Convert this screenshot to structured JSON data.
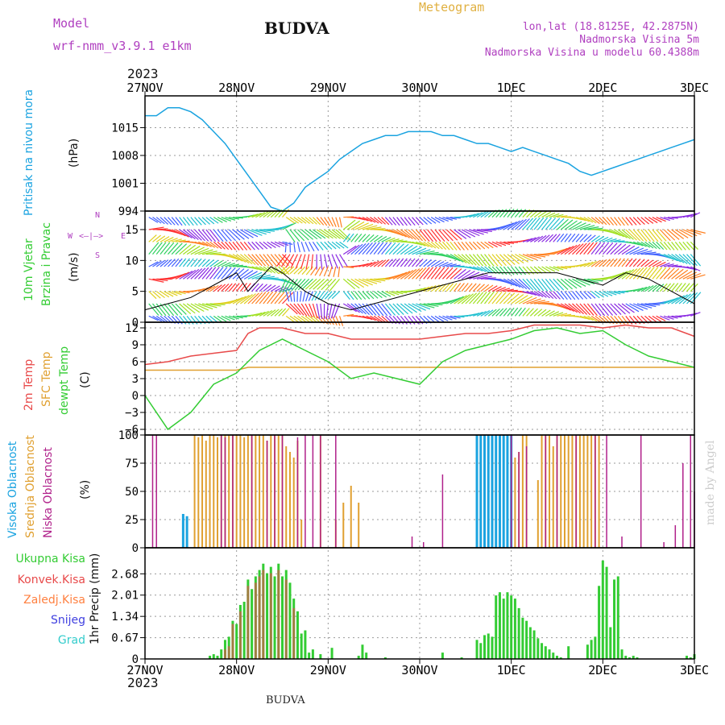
{
  "header": {
    "model_label": "Model",
    "model_name": "wrf-nmm_v3.9.1 e1km",
    "station": "BUDVA",
    "product": "Meteogram",
    "coords": "lon,lat (18.8125E, 42.2875N)",
    "elevation": "Nadmorska Visina 5m",
    "model_elevation": "Nadmorska Visina u modelu 60.4388m",
    "year_top": "2023",
    "year_bottom": "2023",
    "footer_station": "BUDVA",
    "credit": "made by Angel"
  },
  "colors": {
    "pressure": "#1aa3e0",
    "temp2m": "#e84a4a",
    "sfc": "#e0a030",
    "dewpt": "#33cc33",
    "high_cloud": "#1aa3e0",
    "mid_cloud": "#e0a030",
    "low_cloud": "#b0208a",
    "total_precip": "#33cc33",
    "conv_precip": "#e84a4a",
    "frz_precip": "#ff8040",
    "snow": "#4040e0",
    "graupel": "#33cccc",
    "purple_text": "#b040c0",
    "orange_text": "#e0b040"
  },
  "time_axis": [
    "27NOV",
    "28NOV",
    "29NOV",
    "30NOV",
    "1DEC",
    "2DEC",
    "3DEC"
  ],
  "panels": {
    "pressure": {
      "title": "Pritisak na nivou mora",
      "unit": "(hPa)",
      "ticks": [
        "994",
        "1001",
        "1008",
        "1015"
      ]
    },
    "wind": {
      "title1": "10m Vjetar",
      "title2": "Brzina i Pravac",
      "unit": "(m/s)",
      "ticks": [
        "0",
        "5",
        "10",
        "15"
      ],
      "compass_n": "N",
      "compass_s": "S",
      "compass_w": "W",
      "compass_e": "E"
    },
    "temperature": {
      "label_2m": "2m Temp",
      "label_sfc": "SFC Temp",
      "label_dew": "dewpt Temp",
      "unit": "(C)",
      "ticks": [
        "−6",
        "−3",
        "0",
        "3",
        "6",
        "9",
        "12"
      ]
    },
    "cloud": {
      "label_high": "Visoka Oblacnost",
      "label_mid": "Srednja Oblacnost",
      "label_low": "Niska Oblacnost",
      "unit": "(%)",
      "ticks": [
        "0",
        "25",
        "50",
        "75",
        "100"
      ]
    },
    "precip": {
      "label_total": "Ukupna Kisa",
      "label_conv": "Konvek.Kisa",
      "label_frz": "Zaledj.Kisa",
      "label_snow": "Snijeg",
      "label_grad": "Grad",
      "unit": "1hr Precip (mm)",
      "ticks": [
        "0",
        "0.67",
        "1.34",
        "2.01",
        "2.68"
      ]
    }
  },
  "chart_data": [
    {
      "type": "line",
      "name": "pressure",
      "ylim": [
        994,
        1023
      ],
      "x_hours": [
        0,
        3,
        6,
        9,
        12,
        15,
        18,
        21,
        24,
        27,
        30,
        33,
        36,
        39,
        42,
        45,
        48,
        51,
        54,
        57,
        60,
        63,
        66,
        69,
        72,
        75,
        78,
        81,
        84,
        87,
        90,
        93,
        96,
        99,
        102,
        105,
        108,
        111,
        114,
        117,
        120,
        123,
        126,
        129,
        132,
        135,
        138,
        141,
        144
      ],
      "values": [
        1018,
        1018,
        1020,
        1020,
        1019,
        1017,
        1014,
        1011,
        1007,
        1003,
        999,
        995,
        994,
        996,
        1000,
        1002,
        1004,
        1007,
        1009,
        1011,
        1012,
        1013,
        1013,
        1014,
        1014,
        1014,
        1013,
        1013,
        1012,
        1011,
        1011,
        1010,
        1009,
        1010,
        1009,
        1008,
        1007,
        1006,
        1004,
        1003,
        1004,
        1005,
        1006,
        1007,
        1008,
        1009,
        1010,
        1011,
        1012
      ]
    },
    {
      "type": "line",
      "name": "wind_speed",
      "ylim": [
        0,
        18
      ],
      "x_hours": [
        0,
        6,
        12,
        18,
        24,
        27,
        30,
        33,
        36,
        42,
        48,
        54,
        60,
        66,
        72,
        78,
        84,
        90,
        96,
        102,
        108,
        114,
        120,
        126,
        132,
        138,
        144
      ],
      "values": [
        2,
        3,
        4,
        6,
        8,
        5,
        7,
        9,
        8,
        5,
        3,
        2,
        3,
        4,
        5,
        6,
        7,
        8,
        8,
        8,
        8,
        7,
        6,
        8,
        7,
        5,
        3
      ]
    },
    {
      "type": "line",
      "name": "temperature",
      "ylim": [
        -7,
        13
      ],
      "x_hours": [
        0,
        6,
        12,
        18,
        24,
        27,
        30,
        36,
        42,
        48,
        54,
        60,
        66,
        72,
        78,
        84,
        90,
        96,
        102,
        108,
        114,
        120,
        126,
        132,
        138,
        144
      ],
      "series": [
        {
          "name": "2m Temp",
          "values": [
            5.5,
            6,
            7,
            7.5,
            8,
            11,
            12,
            12,
            11,
            11,
            10,
            10,
            10,
            10,
            10.5,
            11,
            11,
            11.5,
            12.5,
            12.5,
            12.5,
            12,
            12.5,
            12,
            12,
            10.5
          ]
        },
        {
          "name": "SFC Temp",
          "values": [
            4.5,
            4.5,
            4.5,
            4.5,
            4.5,
            5,
            5,
            5,
            5,
            5,
            5,
            5,
            5,
            5,
            5,
            5,
            5,
            5,
            5,
            5,
            5,
            5,
            5,
            5,
            5,
            5
          ]
        },
        {
          "name": "dewpt Temp",
          "values": [
            0,
            -6,
            -3,
            2,
            4,
            6,
            8,
            10,
            8,
            6,
            3,
            4,
            3,
            2,
            6,
            8,
            9,
            10,
            11.5,
            12,
            11,
            11.5,
            9,
            7,
            6,
            5
          ]
        }
      ]
    },
    {
      "type": "bar",
      "name": "cloud_cover",
      "ylim": [
        0,
        100
      ],
      "series": [
        {
          "name": "high",
          "hours": [
            10,
            11,
            87,
            88,
            89,
            90,
            91,
            92,
            93,
            94,
            95,
            96
          ],
          "values": [
            30,
            28,
            100,
            100,
            100,
            100,
            100,
            100,
            100,
            100,
            100,
            100
          ]
        },
        {
          "name": "mid",
          "hours": [
            13,
            14,
            15,
            16,
            17,
            18,
            19,
            20,
            21,
            22,
            23,
            24,
            25,
            26,
            27,
            28,
            29,
            30,
            31,
            32,
            33,
            34,
            35,
            36,
            37,
            38,
            39,
            40,
            41,
            46,
            50,
            52,
            54,
            56,
            97,
            98,
            99,
            100,
            103,
            104,
            105,
            106,
            107,
            108,
            109,
            110,
            111,
            112,
            113,
            114,
            115,
            116,
            117,
            118,
            119
          ],
          "values": [
            100,
            98,
            100,
            95,
            100,
            100,
            98,
            100,
            100,
            100,
            100,
            100,
            100,
            98,
            100,
            100,
            100,
            100,
            100,
            95,
            100,
            100,
            100,
            100,
            90,
            85,
            80,
            95,
            25,
            100,
            25,
            40,
            55,
            40,
            80,
            85,
            100,
            100,
            60,
            100,
            100,
            100,
            90,
            100,
            100,
            100,
            100,
            100,
            100,
            100,
            100,
            100,
            100,
            100,
            100
          ]
        },
        {
          "name": "low",
          "hours": [
            2,
            3,
            20,
            21,
            23,
            28,
            32,
            34,
            36,
            40,
            42,
            44,
            46,
            50,
            70,
            73,
            78,
            96,
            98,
            100,
            105,
            108,
            113,
            118,
            121,
            125,
            130,
            136,
            139,
            141,
            143,
            144
          ],
          "values": [
            100,
            100,
            100,
            98,
            100,
            100,
            95,
            100,
            100,
            98,
            100,
            100,
            100,
            100,
            10,
            5,
            65,
            100,
            85,
            90,
            100,
            100,
            100,
            100,
            100,
            10,
            100,
            5,
            20,
            75,
            100,
            50
          ]
        }
      ]
    },
    {
      "type": "bar",
      "name": "precip_1hr",
      "ylim": [
        0,
        3.5
      ],
      "series": [
        {
          "name": "Ukupna Kisa",
          "hours": [
            17,
            18,
            19,
            20,
            21,
            22,
            23,
            24,
            25,
            26,
            27,
            28,
            29,
            30,
            31,
            32,
            33,
            34,
            35,
            36,
            37,
            38,
            39,
            40,
            41,
            42,
            43,
            44,
            46,
            49,
            56,
            57,
            58,
            63,
            78,
            83,
            87,
            88,
            89,
            90,
            91,
            92,
            93,
            94,
            95,
            96,
            97,
            98,
            99,
            100,
            101,
            102,
            103,
            104,
            105,
            106,
            107,
            108,
            109,
            111,
            116,
            117,
            118,
            119,
            120,
            121,
            122,
            123,
            124,
            125,
            126,
            127,
            128,
            129,
            142,
            143,
            144
          ],
          "values": [
            0.1,
            0.15,
            0.1,
            0.3,
            0.6,
            0.7,
            1.2,
            1.1,
            1.7,
            1.8,
            2.5,
            2.2,
            2.6,
            2.8,
            3.0,
            2.7,
            2.9,
            2.6,
            3.0,
            2.6,
            2.8,
            2.4,
            1.9,
            1.5,
            0.8,
            0.9,
            0.2,
            0.3,
            0.15,
            0.35,
            0.1,
            0.45,
            0.2,
            0.05,
            0.2,
            0.05,
            0.6,
            0.5,
            0.75,
            0.8,
            0.7,
            2.0,
            2.1,
            1.9,
            2.1,
            2.0,
            1.9,
            1.6,
            1.3,
            1.2,
            1.0,
            0.9,
            0.65,
            0.5,
            0.4,
            0.3,
            0.2,
            0.1,
            0.05,
            0.4,
            0.45,
            0.6,
            0.7,
            2.3,
            3.1,
            2.9,
            1.0,
            2.5,
            2.6,
            0.3,
            0.1,
            0.05,
            0.1,
            0.05,
            0.1,
            0.05,
            0.15
          ]
        },
        {
          "name": "Konvek.Kisa",
          "hours": [
            21,
            22,
            23,
            25,
            27,
            29,
            30,
            31,
            33,
            35,
            37,
            39
          ],
          "values": [
            0.3,
            0.4,
            1.1,
            1.5,
            2.3,
            2.4,
            2.6,
            2.8,
            2.7,
            2.8,
            2.5,
            1.6
          ]
        }
      ]
    }
  ]
}
